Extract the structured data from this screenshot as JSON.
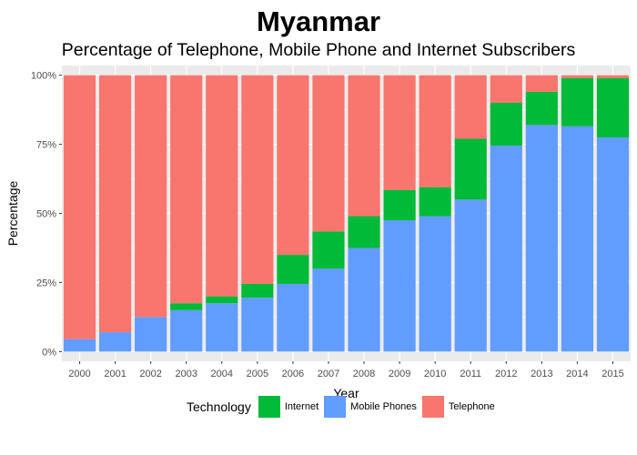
{
  "chart_data": {
    "type": "bar",
    "stacked": true,
    "title": "Myanmar",
    "subtitle": "Percentage of Telephone, Mobile Phone and Internet Subscribers",
    "xlabel": "Year",
    "ylabel": "Percentage",
    "ylim": [
      0,
      100
    ],
    "yticks": [
      "0%",
      "25%",
      "50%",
      "75%",
      "100%"
    ],
    "ytick_values": [
      0,
      25,
      50,
      75,
      100
    ],
    "categories": [
      "2000",
      "2001",
      "2002",
      "2003",
      "2004",
      "2005",
      "2006",
      "2007",
      "2008",
      "2009",
      "2010",
      "2011",
      "2012",
      "2013",
      "2014",
      "2015"
    ],
    "series": [
      {
        "name": "Mobile Phones",
        "color": "#619CFF",
        "values": [
          4.5,
          7,
          12.5,
          15,
          17.5,
          19.5,
          24.5,
          30,
          37.5,
          47.5,
          49,
          55,
          74.5,
          82,
          81.5,
          77.5
        ]
      },
      {
        "name": "Internet",
        "color": "#00BA38",
        "values": [
          0,
          0,
          0,
          2.5,
          2.5,
          5,
          10.5,
          13.5,
          11.5,
          11,
          10.5,
          22,
          15.5,
          12,
          17.5,
          21.5
        ]
      },
      {
        "name": "Telephone",
        "color": "#F8766D",
        "values": [
          95.5,
          93,
          87.5,
          82.5,
          80,
          75.5,
          65,
          56.5,
          51,
          41.5,
          40.5,
          23,
          10,
          6,
          1,
          1
        ]
      }
    ],
    "grid": true,
    "legend": {
      "title": "Technology",
      "placement": "bottom",
      "items": [
        {
          "label": "Internet",
          "color": "#00BA38"
        },
        {
          "label": "Mobile Phones",
          "color": "#619CFF"
        },
        {
          "label": "Telephone",
          "color": "#F8766D"
        }
      ]
    }
  }
}
